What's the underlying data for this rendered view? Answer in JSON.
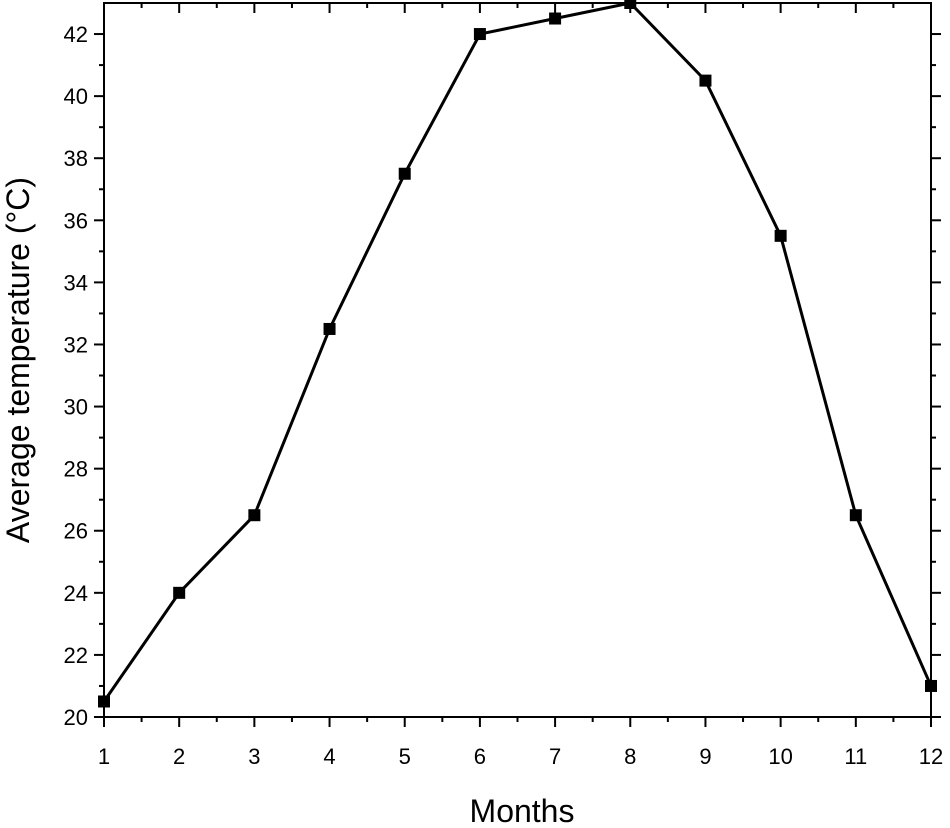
{
  "chart_data": {
    "type": "line",
    "xlabel": "Months",
    "ylabel": "Average temperature (°C)",
    "xlim": [
      1,
      12
    ],
    "ylim": [
      20,
      43
    ],
    "x_ticks": [
      1,
      2,
      3,
      4,
      5,
      6,
      7,
      8,
      9,
      10,
      11,
      12
    ],
    "y_ticks": [
      20,
      22,
      24,
      26,
      28,
      30,
      32,
      34,
      36,
      38,
      40,
      42
    ],
    "grid": false,
    "marker": "square",
    "line_color": "#000000",
    "series": [
      {
        "x": [
          1,
          2,
          3,
          4,
          5,
          6,
          7,
          8,
          9,
          10,
          11,
          12
        ],
        "y": [
          20.5,
          24,
          26.5,
          32.5,
          37.5,
          42,
          42.5,
          43,
          40.5,
          35.5,
          26.5,
          21
        ]
      }
    ]
  }
}
